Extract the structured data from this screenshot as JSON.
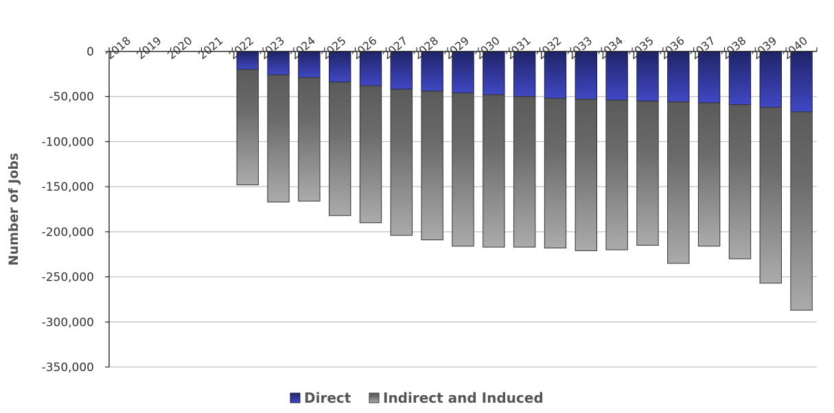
{
  "colors": {
    "direct": "#2e3596",
    "indirect": "#808080",
    "grid": "#bfbfbf",
    "axis": "#000000"
  },
  "chart_data": {
    "type": "bar",
    "stacked": true,
    "title": "",
    "xlabel": "",
    "ylabel": "Number of Jobs",
    "ylim": [
      -350000,
      0
    ],
    "yticks": [
      0,
      -50000,
      -100000,
      -150000,
      -200000,
      -250000,
      -300000,
      -350000
    ],
    "ytick_labels": [
      "0",
      "-50,000",
      "-100,000",
      "-150,000",
      "-200,000",
      "-250,000",
      "-300,000",
      "-350,000"
    ],
    "x_axis_position": "top",
    "grid": true,
    "legend_position": "bottom",
    "categories": [
      "2018",
      "2019",
      "2020",
      "2021",
      "2022",
      "2023",
      "2024",
      "2025",
      "2026",
      "2027",
      "2028",
      "2029",
      "2030",
      "2031",
      "2032",
      "2033",
      "2034",
      "2035",
      "2036",
      "2037",
      "2038",
      "2039",
      "2040"
    ],
    "series": [
      {
        "name": "Direct",
        "values": [
          0,
          0,
          0,
          0,
          -20000,
          -26000,
          -29000,
          -34000,
          -38000,
          -42000,
          -44000,
          -46000,
          -48000,
          -50000,
          -52000,
          -53000,
          -54000,
          -55000,
          -56000,
          -57000,
          -59000,
          -62000,
          -67000
        ]
      },
      {
        "name": "Indirect and Induced",
        "values": [
          0,
          0,
          0,
          0,
          -128000,
          -141000,
          -137000,
          -148000,
          -152000,
          -162000,
          -165000,
          -170000,
          -169000,
          -167000,
          -166000,
          -168000,
          -166000,
          -160000,
          -179000,
          -159000,
          -171000,
          -195000,
          -220000
        ]
      }
    ]
  }
}
